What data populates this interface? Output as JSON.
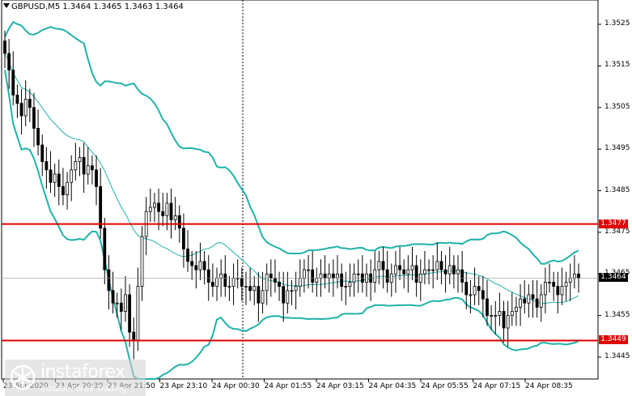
{
  "window": {
    "title": "GBPUSD,M5  1.3464 1.3465 1.3463 1.3464"
  },
  "chart_data": {
    "type": "candlestick",
    "symbol": "GBPUSD",
    "timeframe": "M5",
    "ohlc_header": {
      "open": 1.3464,
      "high": 1.3465,
      "low": 1.3463,
      "close": 1.3464
    },
    "ylim": [
      1.344,
      1.353
    ],
    "y_ticks": [
      "1.3525",
      "1.3515",
      "1.3505",
      "1.3495",
      "1.3485",
      "1.3475",
      "1.3465",
      "1.3455",
      "1.3445"
    ],
    "x_ticks": [
      "23 Apr 2020",
      "23 Apr 20:30",
      "23 Apr 21:50",
      "23 Apr 23:10",
      "24 Apr 00:30",
      "24 Apr 01:55",
      "24 Apr 03:15",
      "24 Apr 04:35",
      "24 Apr 05:55",
      "24 Apr 07:15",
      "24 Apr 08:35"
    ],
    "horizontal_lines": [
      {
        "label": "1.3477",
        "price": 1.3477,
        "color": "#e00000"
      },
      {
        "label": "1.3449",
        "price": 1.3449,
        "color": "#e00000"
      }
    ],
    "current_price": {
      "label": "1.3464",
      "price": 1.3464
    },
    "bollinger_color": "#20b2aa",
    "candle_color": "#000000",
    "closes": [
      1.3518,
      1.3514,
      1.3508,
      1.3506,
      1.3503,
      1.3507,
      1.3505,
      1.35,
      1.3496,
      1.3492,
      1.349,
      1.3487,
      1.3489,
      1.3486,
      1.3484,
      1.3487,
      1.349,
      1.3492,
      1.3493,
      1.3489,
      1.3491,
      1.349,
      1.3486,
      1.3476,
      1.3466,
      1.3461,
      1.3458,
      1.3458,
      1.3456,
      1.346,
      1.3451,
      1.3449,
      1.3462,
      1.3474,
      1.348,
      1.3481,
      1.3482,
      1.348,
      1.3479,
      1.3482,
      1.3478,
      1.3479,
      1.3476,
      1.3471,
      1.3468,
      1.3467,
      1.3466,
      1.3468,
      1.3466,
      1.3463,
      1.3462,
      1.3464,
      1.3465,
      1.3462,
      1.3462,
      1.3464,
      1.3464,
      1.3462,
      1.3462,
      1.3461,
      1.3462,
      1.3458,
      1.3461,
      1.3465,
      1.3464,
      1.3463,
      1.3462,
      1.3458,
      1.3461,
      1.3461,
      1.3462,
      1.3464,
      1.3466,
      1.3466,
      1.3463,
      1.3464,
      1.3465,
      1.3464,
      1.3465,
      1.3464,
      1.3465,
      1.3462,
      1.3462,
      1.3463,
      1.3465,
      1.3465,
      1.3463,
      1.3465,
      1.3463,
      1.3466,
      1.3468,
      1.3466,
      1.3463,
      1.3465,
      1.3467,
      1.3466,
      1.3465,
      1.3466,
      1.3467,
      1.3463,
      1.3465,
      1.3466,
      1.3466,
      1.3466,
      1.3468,
      1.3466,
      1.3465,
      1.3467,
      1.3465,
      1.3466,
      1.3463,
      1.346,
      1.346,
      1.3462,
      1.3461,
      1.3459,
      1.3455,
      1.3455,
      1.3455,
      1.3456,
      1.3452,
      1.3455,
      1.3456,
      1.3457,
      1.3459,
      1.3458,
      1.346,
      1.3459,
      1.3457,
      1.346,
      1.3463,
      1.3463,
      1.3462,
      1.346,
      1.3462,
      1.3463,
      1.3464,
      1.3465,
      1.3464
    ]
  },
  "watermark": {
    "brand": "instaforex",
    "tagline": "Instant Forex Trading"
  }
}
